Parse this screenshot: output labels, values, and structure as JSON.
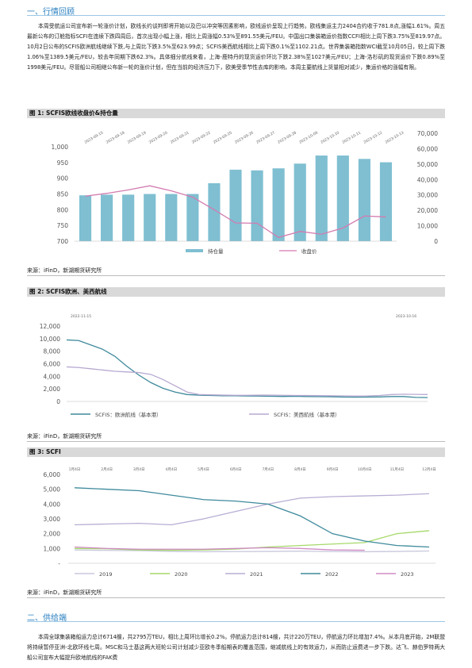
{
  "section1": {
    "title": "一、行情回顾"
  },
  "para1": "本周受航运公司宣布新一轮涨价计划，欧线长约谈判即将开始以及巴以冲突等因素影响，欧线运价呈现上行趋势。欧线集运主力2404合约收于781.8点,涨幅1.61%。周五最新公布的订舱指标SCFI在连续下跌四周后，首次出现小幅上涨，相比上周涨幅0.53%至891.55美元/FEU。中国出口集装箱运价指数CCFI相比上周下跌3.75%至819.97点。10月2日公布的SCFIS欧洲航线继续下跌,与上周比下跌3.5%至623.99点；SCFIS美西航线相比上周下跌0.1%至1102.21点。世界集装箱指数WCI截至10月05日，较上周下跌1.06%至1389.5美元/FEU，较去年同期下跌62.3%。具体细分航线来看，上海-鹿特丹的现货运价环比下跌2.38%至1027美元/FEU；上海-洛杉矶的现货运价下跌0.89%至1998美元/FEU。尽管船公司相继公布新一轮的涨价计划，但在当前的经济压力下，欧美受季节性去库的影响，本周主要航线上货量相对减少，集运价格的涨幅有限。",
  "fig1": {
    "title": "图 1: SCFIS欧线收盘价&持仓量",
    "source": "来源：iFinD，新湖期货研究所"
  },
  "fig2": {
    "title": "图 2: SCFIS欧洲、美西航线",
    "source": "来源：iFinD，新湖期货研究所"
  },
  "fig3": {
    "title": "图 3: SCFI",
    "source": "来源：iFinD，新湖期货研究所"
  },
  "section2": {
    "title": "二、供给端"
  },
  "para2": "本周全球集装箱船运力总计6714艘，共2795万TEU，相比上周环比增长0.2%。停航运力总计814艘，共计220万TEU，停航运力环比增加7.4%。从本月底开始，2M联盟将持续暂停亚洲-北欧环线七周。MSC和马士基这两大班轮公司计划减少亚欧冬季船期表的覆盖范围，缩减航线上的有效运力，从而防止运费进一步下跌。达飞、赫伯罗特两大船公司宣布大幅提升欧地航线的FAK费",
  "chart_data": [
    {
      "type": "bar+line",
      "categories": [
        "2023-09-15",
        "2023-09-18",
        "2023-09-19",
        "2023-09-20",
        "2023-09-21",
        "2023-09-22",
        "2023-09-25",
        "2023-09-26",
        "2023-09-27",
        "2023-09-28",
        "2023-10-09",
        "2023-10-10",
        "2023-10-11",
        "2023-10-12",
        "2023-10-13"
      ],
      "series": [
        {
          "name": "持仓量",
          "kind": "bar",
          "axis": "right",
          "values": [
            34000,
            34500,
            34500,
            35000,
            35000,
            35000,
            43000,
            53000,
            52500,
            54000,
            57500,
            63500,
            63500,
            61000,
            58500
          ]
        },
        {
          "name": "收盘价",
          "kind": "line",
          "axis": "left",
          "values": [
            843,
            852,
            863,
            876,
            860,
            840,
            800,
            758,
            757,
            712,
            731,
            722,
            742,
            780,
            777
          ]
        }
      ],
      "ylim_left": [
        700,
        1000
      ],
      "yticks_left": [
        "1,000",
        "950",
        "900",
        "850",
        "800",
        "750",
        "700"
      ],
      "ylim_right": [
        0,
        70000
      ],
      "yticks_right": [
        "70,000",
        "60,000",
        "50,000",
        "40,000",
        "30,000",
        "20,000",
        "10,000",
        "0"
      ],
      "bar_color": "#7fbfd1",
      "line_color": "#d37bb0"
    },
    {
      "type": "line",
      "x_start": "2022-11-15",
      "x_end": "2023-10-16",
      "series": [
        {
          "name": "SCFIS：欧洲航线（基本港）",
          "values": [
            9800,
            9700,
            9000,
            8300,
            7200,
            5600,
            4200,
            3000,
            2100,
            1500,
            1100,
            1000,
            950,
            900,
            900,
            870,
            850,
            820,
            800,
            820,
            780,
            760,
            740,
            700,
            680,
            700,
            720,
            780,
            780,
            650,
            620
          ]
        },
        {
          "name": "SCFIS：美西航线（基本港）",
          "values": [
            5500,
            5400,
            5200,
            5000,
            4800,
            4700,
            4600,
            4300,
            3500,
            2500,
            1500,
            1100,
            1050,
            1000,
            980,
            980,
            1000,
            1000,
            980,
            950,
            940,
            930,
            900,
            880,
            860,
            880,
            950,
            1100,
            1150,
            1120,
            1100
          ]
        }
      ],
      "ylim": [
        0,
        12000
      ],
      "yticks": [
        "12,000",
        "10,000",
        "8,000",
        "6,000",
        "4,000",
        "2,000",
        "0"
      ],
      "colors": [
        "#3f8a9c",
        "#b7a9d1"
      ]
    },
    {
      "type": "line",
      "x_labels": [
        "1月4日",
        "2月4日",
        "3月4日",
        "4月4日",
        "5月4日",
        "6月4日",
        "7月4日",
        "8月4日",
        "9月4日",
        "10月4日",
        "11月4日",
        "12月4日"
      ],
      "series": [
        {
          "name": "2019",
          "values": [
            900,
            870,
            850,
            800,
            780,
            790,
            800,
            820,
            790,
            780,
            800,
            830
          ]
        },
        {
          "name": "2020",
          "values": [
            1000,
            980,
            900,
            880,
            900,
            960,
            1100,
            1200,
            1300,
            1400,
            2000,
            2200
          ]
        },
        {
          "name": "2021",
          "values": [
            2600,
            2650,
            2700,
            2600,
            3000,
            3500,
            4000,
            4400,
            4500,
            4550,
            4600,
            4700
          ]
        },
        {
          "name": "2022",
          "values": [
            5100,
            5000,
            4900,
            4600,
            4300,
            4200,
            4000,
            3200,
            2000,
            1500,
            1200,
            1100
          ]
        },
        {
          "name": "2023",
          "values": [
            1100,
            1000,
            950,
            950,
            950,
            1000,
            1050,
            1000,
            900,
            880
          ]
        }
      ],
      "ylim": [
        0,
        6000
      ],
      "yticks": [
        "6,000",
        "5,000",
        "4,000",
        "3,000",
        "2,000",
        "1,000",
        "-"
      ],
      "colors": [
        "#c8c8dd",
        "#a6d96a",
        "#b8aed4",
        "#3f8a9c",
        "#cf8bc5"
      ]
    }
  ]
}
